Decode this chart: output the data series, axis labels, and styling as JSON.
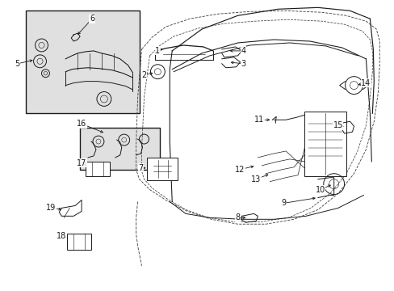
{
  "bg_color": "#ffffff",
  "line_color": "#1a1a1a",
  "gray_fill": "#e0e0e0",
  "fig_width": 4.89,
  "fig_height": 3.6,
  "dpi": 100,
  "label_fontsize": 7.0,
  "lw": 0.7
}
